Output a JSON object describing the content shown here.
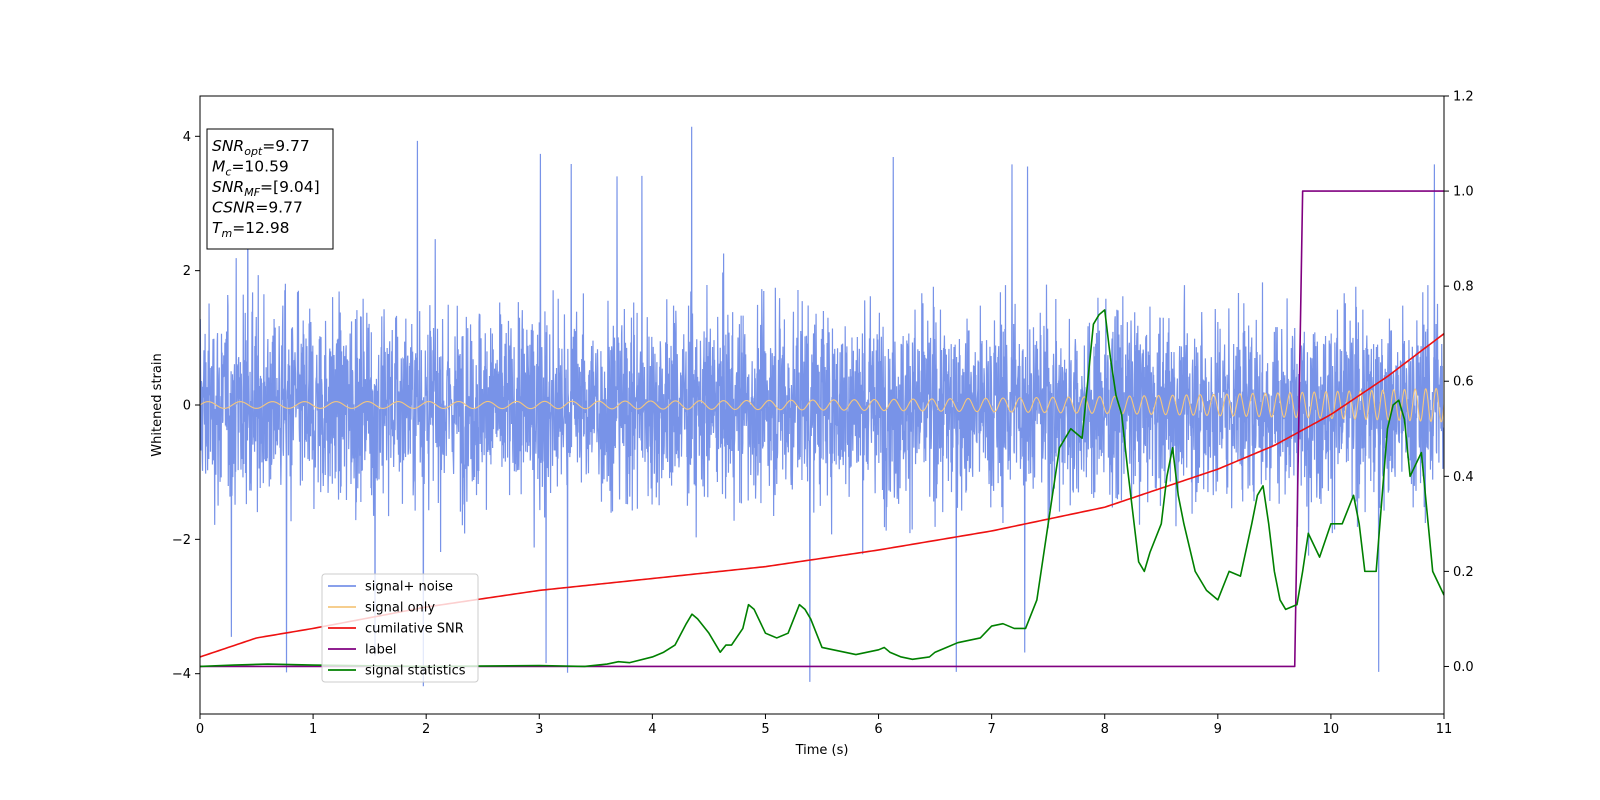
{
  "chart_data": {
    "type": "line",
    "title": "",
    "xlabel": "Time (s)",
    "ylabel": "Whitened strain",
    "xlim": [
      0,
      11
    ],
    "ylim": [
      -4.6,
      4.6
    ],
    "y2lim": [
      -0.1,
      1.2
    ],
    "xticks": [
      0,
      1,
      2,
      3,
      4,
      5,
      6,
      7,
      8,
      9,
      10,
      11
    ],
    "yticks": [
      -4,
      -2,
      0,
      2,
      4
    ],
    "y2ticks": [
      "0.0",
      "0.2",
      "0.4",
      "0.6",
      "0.8",
      "1.0",
      "1.2"
    ],
    "grid": false,
    "legend_position": "lower-left",
    "info_box": {
      "position": "top-left",
      "lines": [
        {
          "symbol": "SNR",
          "sub": "opt",
          "value": "=9.77"
        },
        {
          "symbol": "M",
          "sub": "c",
          "value": "=10.59"
        },
        {
          "symbol": "SNR",
          "sub": "MF",
          "value": "=[9.04]"
        },
        {
          "symbol": "CSNR",
          "sub": "",
          "value": "=9.77"
        },
        {
          "symbol": "T",
          "sub": "m",
          "value": "=12.98"
        }
      ]
    },
    "series": [
      {
        "name": "signal+ noise",
        "color": "#7893e8",
        "axis": "left",
        "kind": "noise",
        "typical_amplitude": 1.6,
        "min": -4.2,
        "max": 4.15
      },
      {
        "name": "signal only",
        "color": "#f5c77e",
        "axis": "left",
        "kind": "chirp",
        "amplitude_start": 0.05,
        "amplitude_end": 0.25,
        "freq_start_hz": 3.5,
        "freq_end_hz": 11
      },
      {
        "name": "cumilative SNR",
        "color": "#ee1111",
        "axis": "right",
        "x": [
          0,
          0.5,
          1,
          2,
          3,
          4,
          5,
          6,
          7,
          8,
          9,
          9.5,
          10,
          10.5,
          11
        ],
        "y": [
          0.02,
          0.06,
          0.08,
          0.125,
          0.16,
          0.185,
          0.21,
          0.245,
          0.285,
          0.335,
          0.415,
          0.465,
          0.53,
          0.61,
          0.7
        ]
      },
      {
        "name": "label",
        "color": "#800080",
        "axis": "right",
        "x": [
          0,
          9.68,
          9.75,
          11
        ],
        "y": [
          0,
          0,
          1,
          1
        ]
      },
      {
        "name": "signal statistics",
        "color": "#008000",
        "axis": "right",
        "x": [
          0,
          0.3,
          0.6,
          1,
          2,
          3,
          3.4,
          3.6,
          3.7,
          3.8,
          4.0,
          4.1,
          4.2,
          4.3,
          4.35,
          4.4,
          4.5,
          4.6,
          4.65,
          4.7,
          4.8,
          4.85,
          4.9,
          5.0,
          5.1,
          5.2,
          5.3,
          5.35,
          5.4,
          5.5,
          5.6,
          5.7,
          5.8,
          5.9,
          6.0,
          6.05,
          6.1,
          6.2,
          6.3,
          6.45,
          6.5,
          6.6,
          6.7,
          6.8,
          6.9,
          7.0,
          7.1,
          7.2,
          7.3,
          7.4,
          7.5,
          7.6,
          7.7,
          7.8,
          7.9,
          7.95,
          8.0,
          8.05,
          8.1,
          8.15,
          8.2,
          8.3,
          8.35,
          8.4,
          8.5,
          8.55,
          8.6,
          8.65,
          8.7,
          8.8,
          8.9,
          9.0,
          9.1,
          9.2,
          9.3,
          9.35,
          9.4,
          9.45,
          9.5,
          9.55,
          9.6,
          9.7,
          9.75,
          9.8,
          9.9,
          10.0,
          10.1,
          10.2,
          10.25,
          10.3,
          10.4,
          10.5,
          10.55,
          10.6,
          10.65,
          10.7,
          10.8,
          10.9,
          11.0
        ],
        "y": [
          0.0,
          0.003,
          0.005,
          0.003,
          0.0,
          0.002,
          0.0,
          0.005,
          0.01,
          0.008,
          0.02,
          0.03,
          0.045,
          0.09,
          0.11,
          0.1,
          0.07,
          0.03,
          0.045,
          0.045,
          0.08,
          0.13,
          0.12,
          0.07,
          0.06,
          0.07,
          0.13,
          0.12,
          0.1,
          0.04,
          0.035,
          0.03,
          0.025,
          0.03,
          0.035,
          0.04,
          0.03,
          0.02,
          0.015,
          0.02,
          0.03,
          0.04,
          0.05,
          0.055,
          0.06,
          0.085,
          0.09,
          0.08,
          0.08,
          0.14,
          0.3,
          0.46,
          0.5,
          0.48,
          0.72,
          0.74,
          0.75,
          0.65,
          0.57,
          0.53,
          0.42,
          0.22,
          0.2,
          0.24,
          0.3,
          0.4,
          0.46,
          0.36,
          0.3,
          0.2,
          0.16,
          0.14,
          0.2,
          0.19,
          0.3,
          0.36,
          0.38,
          0.3,
          0.2,
          0.14,
          0.12,
          0.13,
          0.2,
          0.28,
          0.23,
          0.3,
          0.3,
          0.36,
          0.3,
          0.2,
          0.2,
          0.5,
          0.55,
          0.56,
          0.52,
          0.4,
          0.45,
          0.2,
          0.15
        ]
      }
    ]
  }
}
